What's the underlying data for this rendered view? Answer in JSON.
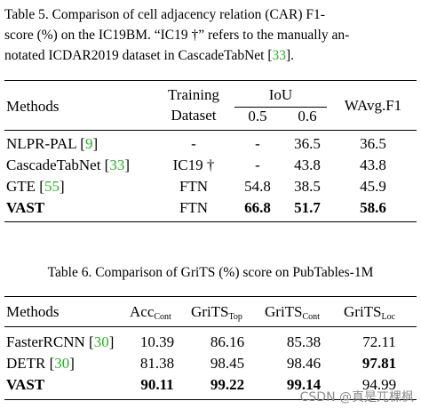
{
  "table5": {
    "caption": {
      "line1": "Table 5.   Comparison of cell adjacency relation (CAR) F1-",
      "line2": "score (%) on the IC19BM. “IC19 †” refers to the manually an-",
      "line3_pre": "notated ICDAR2019 dataset in CascadeTabNet [",
      "line3_ref": "33",
      "line3_post": "]."
    },
    "headers": {
      "methods": "Methods",
      "training_1": "Training",
      "training_2": "Dataset",
      "iou": "IoU",
      "iou_05": "0.5",
      "iou_06": "0.6",
      "wavg": "WAvg.F1"
    },
    "rows": [
      {
        "method": "NLPR-PAL [",
        "ref": "9",
        "ref_close": "]",
        "dataset": "-",
        "iou05": "-",
        "iou06": "36.5",
        "wavg": "36.5"
      },
      {
        "method": "CascadeTabNet [",
        "ref": "33",
        "ref_close": "]",
        "dataset": "IC19 †",
        "iou05": "-",
        "iou06": "43.8",
        "wavg": "43.8"
      },
      {
        "method": "GTE [",
        "ref": "55",
        "ref_close": "]",
        "dataset": "FTN",
        "iou05": "54.8",
        "iou06": "38.5",
        "wavg": "45.9"
      },
      {
        "method": "VAST",
        "dataset": "FTN",
        "iou05": "66.8",
        "iou06": "51.7",
        "wavg": "58.6"
      }
    ]
  },
  "table6": {
    "caption": "Table 6. Comparison of GriTS (%) score on PubTables-1M",
    "headers": {
      "methods": "Methods",
      "acc": "Acc",
      "acc_sub": "Cont",
      "grits_top": "GriTS",
      "grits_top_sub": "Top",
      "grits_cont": "GriTS",
      "grits_cont_sub": "Cont",
      "grits_loc": "GriTS",
      "grits_loc_sub": "Loc"
    },
    "rows": [
      {
        "method": "FasterRCNN [",
        "ref": "30",
        "ref_close": "]",
        "acc": "10.39",
        "top": "86.16",
        "cont": "85.38",
        "loc": "72.11"
      },
      {
        "method": "DETR [",
        "ref": "30",
        "ref_close": "]",
        "acc": "81.38",
        "top": "98.45",
        "cont": "98.46",
        "loc": "97.81"
      },
      {
        "method": "VAST",
        "acc": "90.11",
        "top": "99.22",
        "cont": "99.14",
        "loc": "94.99"
      }
    ]
  },
  "watermark": "CSDN @真是兀棵枫",
  "colors": {
    "ref_link": "#22b422",
    "watermark": "#8a8a8a"
  }
}
